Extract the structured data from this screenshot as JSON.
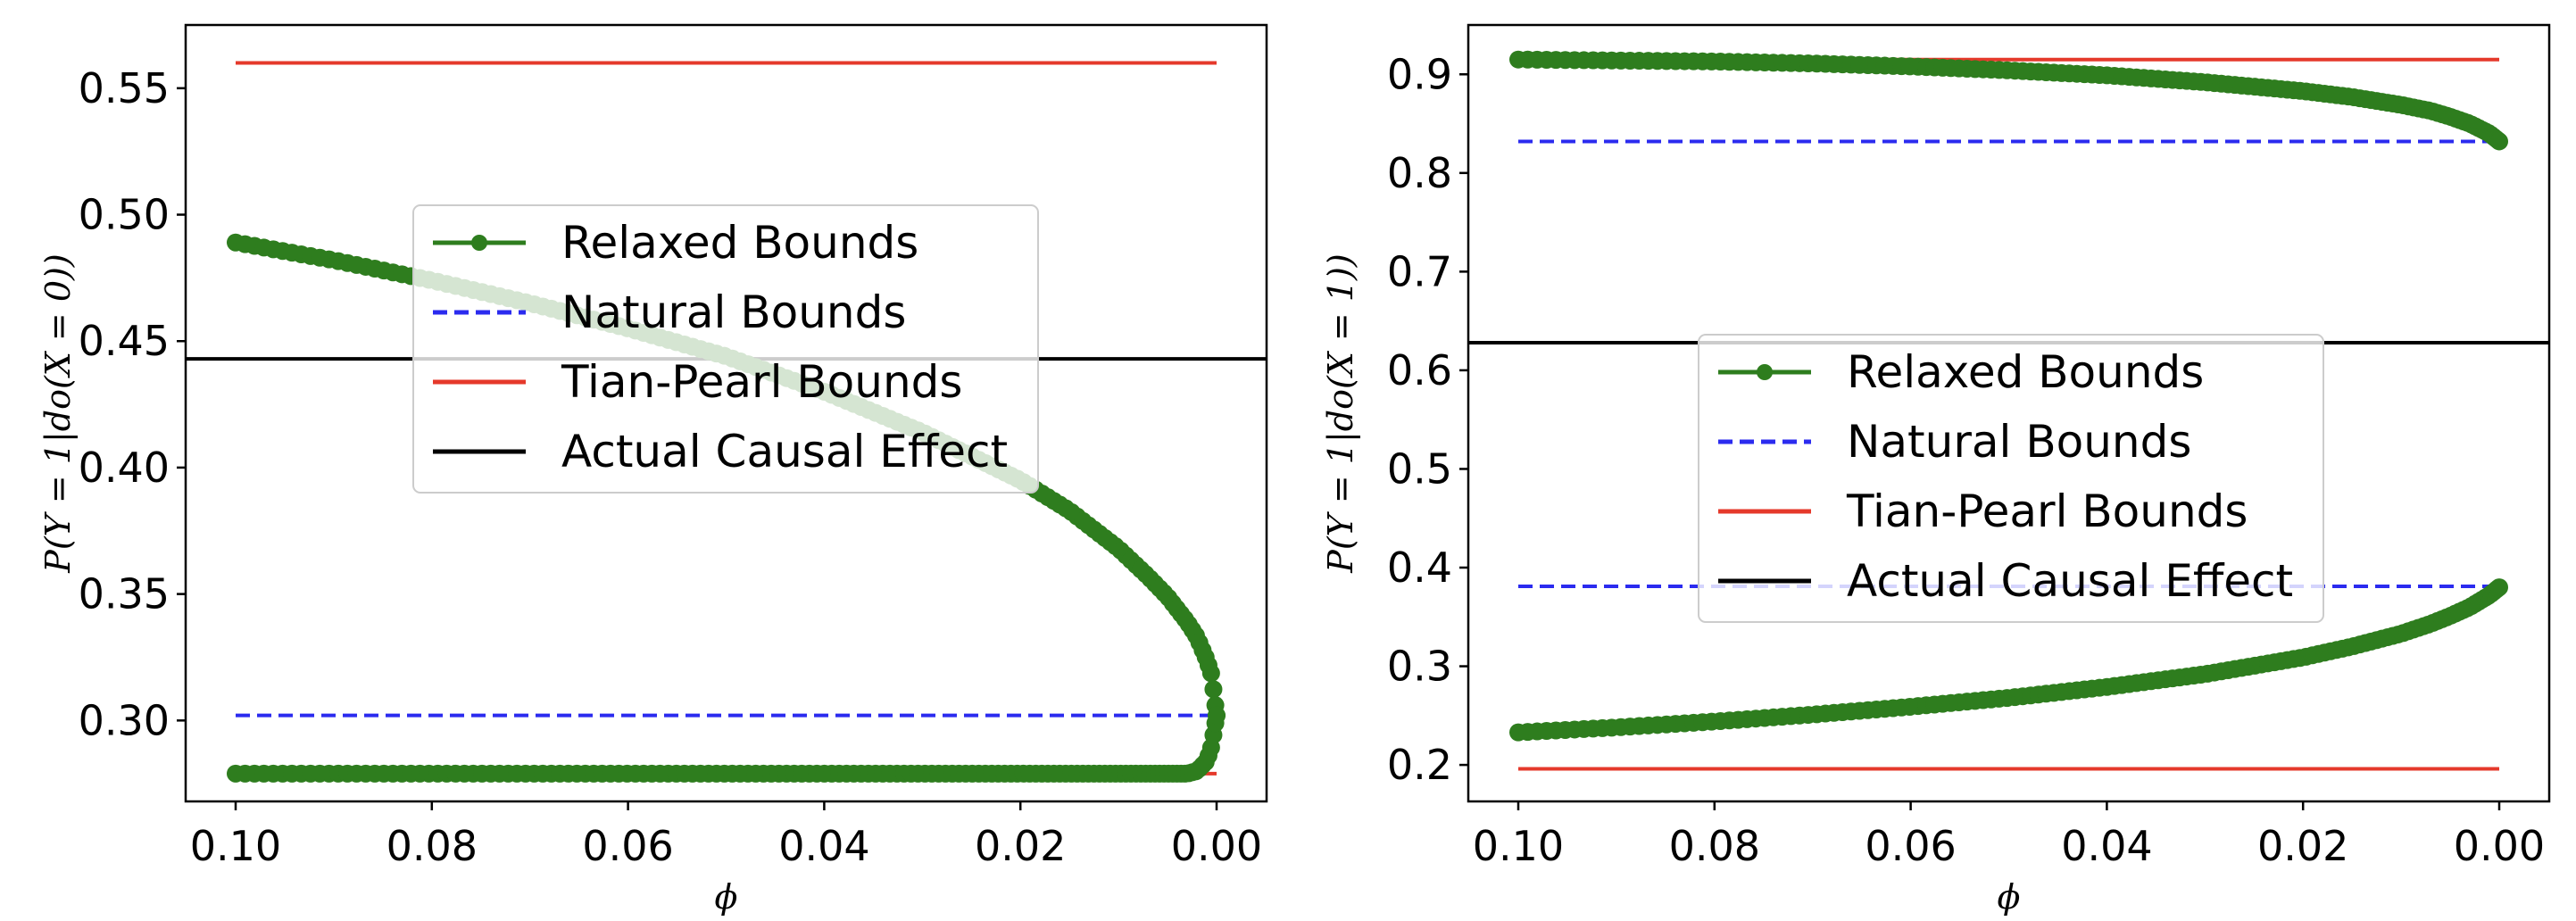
{
  "figure": {
    "layout": "1x2 subplots"
  },
  "chart_data": [
    {
      "type": "line",
      "xlabel": "ϕ",
      "ylabel": "P(Y = 1|do(X = 0))",
      "xlim": [
        0.1,
        0.0
      ],
      "xaxis_inverted": true,
      "ylim": [
        0.268,
        0.575
      ],
      "xticks": [
        0.1,
        0.08,
        0.06,
        0.04,
        0.02,
        0.0
      ],
      "xtick_labels": [
        "0.10",
        "0.08",
        "0.06",
        "0.04",
        "0.02",
        "0.00"
      ],
      "yticks": [
        0.3,
        0.35,
        0.4,
        0.45,
        0.5,
        0.55
      ],
      "ytick_labels": [
        "0.30",
        "0.35",
        "0.40",
        "0.45",
        "0.50",
        "0.55"
      ],
      "grid": false,
      "legend_placement": "center",
      "series": [
        {
          "name": "Relaxed Bounds",
          "style": "line-marker",
          "color": "#2e7d1e",
          "upper": {
            "x": [
              0.1,
              0.09,
              0.08,
              0.07,
              0.06,
              0.05,
              0.04,
              0.03,
              0.02,
              0.015,
              0.01,
              0.007,
              0.005,
              0.003,
              0.002,
              0.001,
              0.0005,
              0.0
            ],
            "y": [
              0.489,
              0.482,
              0.474,
              0.465,
              0.455,
              0.444,
              0.43,
              0.414,
              0.395,
              0.383,
              0.368,
              0.357,
              0.349,
              0.339,
              0.333,
              0.324,
              0.318,
              0.302
            ]
          },
          "lower": {
            "x": [
              0.1,
              0.05,
              0.01,
              0.005,
              0.003,
              0.002,
              0.001,
              0.0005,
              0.0
            ],
            "y": [
              0.279,
              0.279,
              0.279,
              0.279,
              0.279,
              0.28,
              0.284,
              0.29,
              0.302
            ]
          }
        },
        {
          "name": "Natural Bounds",
          "style": "dashed",
          "color": "#2b2bef",
          "values": [
            0.302
          ]
        },
        {
          "name": "Tian-Pearl Bounds",
          "style": "solid",
          "color": "#e5392b",
          "values": [
            0.279,
            0.56
          ]
        },
        {
          "name": "Actual Causal Effect",
          "style": "solid",
          "color": "#000000",
          "values": [
            0.443
          ],
          "spans_full_width": true
        }
      ]
    },
    {
      "type": "line",
      "xlabel": "ϕ",
      "ylabel": "P(Y = 1|do(X = 1))",
      "xlim": [
        0.1,
        0.0
      ],
      "xaxis_inverted": true,
      "ylim": [
        0.163,
        0.95
      ],
      "xticks": [
        0.1,
        0.08,
        0.06,
        0.04,
        0.02,
        0.0
      ],
      "xtick_labels": [
        "0.10",
        "0.08",
        "0.06",
        "0.04",
        "0.02",
        "0.00"
      ],
      "yticks": [
        0.2,
        0.3,
        0.4,
        0.5,
        0.6,
        0.7,
        0.8,
        0.9
      ],
      "ytick_labels": [
        "0.2",
        "0.3",
        "0.4",
        "0.5",
        "0.6",
        "0.7",
        "0.8",
        "0.9"
      ],
      "grid": false,
      "legend_placement": "center",
      "series": [
        {
          "name": "Relaxed Bounds",
          "style": "line-marker",
          "color": "#2e7d1e",
          "upper": {
            "x": [
              0.1,
              0.09,
              0.08,
              0.07,
              0.06,
              0.05,
              0.04,
              0.03,
              0.02,
              0.015,
              0.01,
              0.007,
              0.005,
              0.003,
              0.001,
              0.0
            ],
            "y": [
              0.915,
              0.914,
              0.913,
              0.911,
              0.908,
              0.904,
              0.899,
              0.892,
              0.883,
              0.877,
              0.869,
              0.863,
              0.857,
              0.85,
              0.84,
              0.832
            ]
          },
          "lower": {
            "x": [
              0.1,
              0.09,
              0.08,
              0.07,
              0.06,
              0.05,
              0.04,
              0.03,
              0.02,
              0.015,
              0.01,
              0.007,
              0.005,
              0.003,
              0.001,
              0.0
            ],
            "y": [
              0.233,
              0.238,
              0.244,
              0.251,
              0.259,
              0.268,
              0.279,
              0.292,
              0.309,
              0.32,
              0.333,
              0.343,
              0.351,
              0.36,
              0.372,
              0.38
            ]
          }
        },
        {
          "name": "Natural Bounds",
          "style": "dashed",
          "color": "#2b2bef",
          "values": [
            0.381,
            0.832
          ]
        },
        {
          "name": "Tian-Pearl Bounds",
          "style": "solid",
          "color": "#e5392b",
          "values": [
            0.196,
            0.915
          ]
        },
        {
          "name": "Actual Causal Effect",
          "style": "solid",
          "color": "#000000",
          "values": [
            0.628
          ],
          "spans_full_width": true
        }
      ]
    }
  ]
}
